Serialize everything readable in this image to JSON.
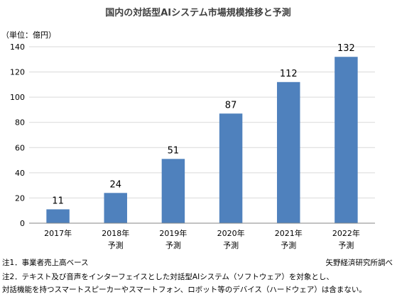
{
  "chart_data": {
    "type": "bar",
    "title": "国内の対話型AIシステム市場規模推移と予測",
    "unit_label": "（単位：億円）",
    "categories": [
      [
        "2017年"
      ],
      [
        "2018年",
        "予測"
      ],
      [
        "2019年",
        "予測"
      ],
      [
        "2020年",
        "予測"
      ],
      [
        "2021年",
        "予測"
      ],
      [
        "2022年",
        "予測"
      ]
    ],
    "values": [
      11,
      24,
      51,
      87,
      112,
      132
    ],
    "ylim": [
      0,
      140
    ],
    "yticks": [
      0,
      20,
      40,
      60,
      80,
      100,
      120,
      140
    ],
    "grid": true,
    "bar_color": "#4f81bd",
    "gridline_color": "#d9d9d9"
  },
  "notes": {
    "note1": "注1．事業者売上高ベース",
    "source": "矢野経済研究所調べ",
    "note2_line1": "注2．テキスト及び音声をインターフェイスとした対話型AIシステム（ソフトウェア）を対象とし、",
    "note2_line2": "対話機能を持つスマートスピーカーやスマートフォン、ロボット等のデバイス（ハードウェア）は含まない。"
  }
}
